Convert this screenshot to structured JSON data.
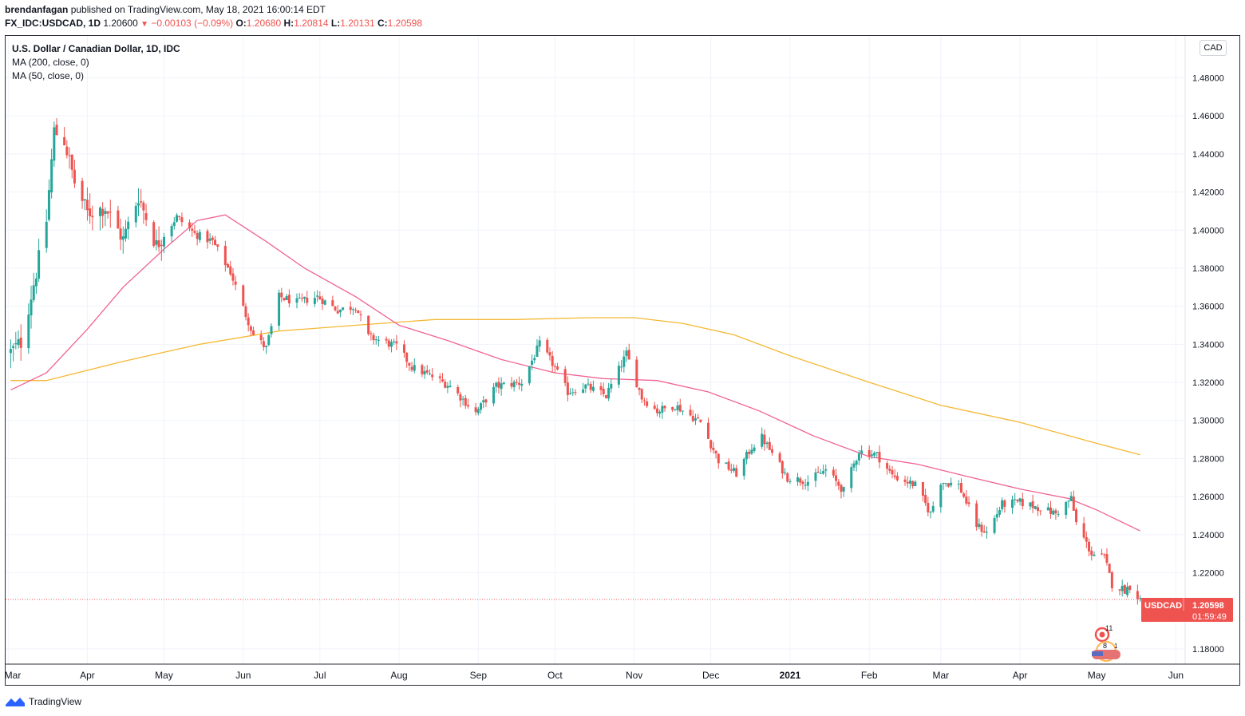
{
  "header": {
    "author": "brendanfagan",
    "published": "published on TradingView.com, May 18, 2021 16:00:14 EDT"
  },
  "ohlc": {
    "symbol": "FX_IDC:USDCAD, 1D",
    "last": "1.20600",
    "change": "−0.00103 (−0.09%)",
    "o_label": "O:",
    "o": "1.20680",
    "h_label": "H:",
    "h": "1.20814",
    "l_label": "L:",
    "l": "1.20131",
    "c_label": "C:",
    "c": "1.20598"
  },
  "legend": {
    "title": "U.S. Dollar / Canadian Dollar, 1D, IDC",
    "ma200": "MA (200, close, 0)",
    "ma50": "MA (50, close, 0)"
  },
  "currency": "CAD",
  "price_tag": {
    "symbol": "USDCAD",
    "price": "1.20598",
    "countdown": "01:59:49"
  },
  "event_markers": {
    "upper": "11",
    "lower": "8",
    "lower_extra": "1"
  },
  "footer": {
    "brand": "TradingView"
  },
  "colors": {
    "up": "#26a69a",
    "down": "#ef5350",
    "ma200": "#f5b833",
    "ma50": "#f06292",
    "grid": "#f0f3fa"
  },
  "chart_data": {
    "type": "candlestick",
    "x_ticks": [
      "Mar",
      "Apr",
      "May",
      "Jun",
      "Jul",
      "Aug",
      "Sep",
      "Oct",
      "Nov",
      "Dec",
      "2021",
      "Feb",
      "Mar",
      "Apr",
      "May",
      "Jun"
    ],
    "y_ticks": [
      "1.48000",
      "1.46000",
      "1.44000",
      "1.42000",
      "1.40000",
      "1.38000",
      "1.36000",
      "1.34000",
      "1.32000",
      "1.30000",
      "1.28000",
      "1.26000",
      "1.24000",
      "1.22000",
      "1.18000"
    ],
    "ylim": [
      1.172,
      1.502
    ],
    "close_keypoints": [
      [
        "2020-03-02",
        1.336
      ],
      [
        "2020-03-06",
        1.341
      ],
      [
        "2020-03-12",
        1.378
      ],
      [
        "2020-03-16",
        1.405
      ],
      [
        "2020-03-19",
        1.452
      ],
      [
        "2020-03-23",
        1.447
      ],
      [
        "2020-03-27",
        1.425
      ],
      [
        "2020-04-01",
        1.409
      ],
      [
        "2020-04-08",
        1.412
      ],
      [
        "2020-04-15",
        1.395
      ],
      [
        "2020-04-21",
        1.418
      ],
      [
        "2020-04-28",
        1.392
      ],
      [
        "2020-05-06",
        1.407
      ],
      [
        "2020-05-13",
        1.398
      ],
      [
        "2020-05-20",
        1.394
      ],
      [
        "2020-05-27",
        1.378
      ],
      [
        "2020-06-01",
        1.359
      ],
      [
        "2020-06-05",
        1.345
      ],
      [
        "2020-06-10",
        1.338
      ],
      [
        "2020-06-15",
        1.365
      ],
      [
        "2020-06-22",
        1.362
      ],
      [
        "2020-06-30",
        1.365
      ],
      [
        "2020-07-08",
        1.358
      ],
      [
        "2020-07-15",
        1.36
      ],
      [
        "2020-07-20",
        1.344
      ],
      [
        "2020-07-31",
        1.339
      ],
      [
        "2020-08-06",
        1.328
      ],
      [
        "2020-08-14",
        1.323
      ],
      [
        "2020-08-21",
        1.318
      ],
      [
        "2020-08-31",
        1.304
      ],
      [
        "2020-09-08",
        1.318
      ],
      [
        "2020-09-18",
        1.32
      ],
      [
        "2020-09-25",
        1.34
      ],
      [
        "2020-09-30",
        1.33
      ],
      [
        "2020-10-06",
        1.315
      ],
      [
        "2020-10-13",
        1.318
      ],
      [
        "2020-10-21",
        1.313
      ],
      [
        "2020-10-29",
        1.335
      ],
      [
        "2020-11-04",
        1.312
      ],
      [
        "2020-11-10",
        1.305
      ],
      [
        "2020-11-17",
        1.308
      ],
      [
        "2020-11-27",
        1.299
      ],
      [
        "2020-12-04",
        1.279
      ],
      [
        "2020-12-11",
        1.272
      ],
      [
        "2020-12-17",
        1.286
      ],
      [
        "2020-12-21",
        1.291
      ],
      [
        "2020-12-31",
        1.27
      ],
      [
        "2021-01-08",
        1.268
      ],
      [
        "2021-01-15",
        1.274
      ],
      [
        "2021-01-22",
        1.263
      ],
      [
        "2021-01-28",
        1.284
      ],
      [
        "2021-02-04",
        1.282
      ],
      [
        "2021-02-10",
        1.271
      ],
      [
        "2021-02-19",
        1.266
      ],
      [
        "2021-02-25",
        1.251
      ],
      [
        "2021-03-01",
        1.268
      ],
      [
        "2021-03-08",
        1.266
      ],
      [
        "2021-03-15",
        1.245
      ],
      [
        "2021-03-19",
        1.241
      ],
      [
        "2021-03-25",
        1.256
      ],
      [
        "2021-04-01",
        1.257
      ],
      [
        "2021-04-09",
        1.254
      ],
      [
        "2021-04-15",
        1.251
      ],
      [
        "2021-04-21",
        1.259
      ],
      [
        "2021-04-23",
        1.246
      ],
      [
        "2021-04-29",
        1.23
      ],
      [
        "2021-05-04",
        1.228
      ],
      [
        "2021-05-07",
        1.214
      ],
      [
        "2021-05-12",
        1.211
      ],
      [
        "2021-05-14",
        1.213
      ],
      [
        "2021-05-18",
        1.206
      ]
    ],
    "series": [
      {
        "name": "MA (200, close, 0)",
        "points": [
          [
            "2020-03-02",
            1.321
          ],
          [
            "2020-03-16",
            1.321
          ],
          [
            "2020-04-15",
            1.331
          ],
          [
            "2020-05-15",
            1.34
          ],
          [
            "2020-06-15",
            1.347
          ],
          [
            "2020-07-15",
            1.35
          ],
          [
            "2020-08-15",
            1.353
          ],
          [
            "2020-09-15",
            1.353
          ],
          [
            "2020-10-15",
            1.354
          ],
          [
            "2020-11-01",
            1.354
          ],
          [
            "2020-11-20",
            1.351
          ],
          [
            "2020-12-10",
            1.345
          ],
          [
            "2021-01-01",
            1.334
          ],
          [
            "2021-02-01",
            1.32
          ],
          [
            "2021-03-01",
            1.308
          ],
          [
            "2021-04-01",
            1.299
          ],
          [
            "2021-05-01",
            1.288
          ],
          [
            "2021-05-18",
            1.282
          ]
        ]
      },
      {
        "name": "MA (50, close, 0)",
        "points": [
          [
            "2020-03-02",
            1.316
          ],
          [
            "2020-03-16",
            1.325
          ],
          [
            "2020-04-01",
            1.348
          ],
          [
            "2020-04-15",
            1.37
          ],
          [
            "2020-05-01",
            1.39
          ],
          [
            "2020-05-14",
            1.405
          ],
          [
            "2020-05-25",
            1.408
          ],
          [
            "2020-06-10",
            1.394
          ],
          [
            "2020-06-25",
            1.38
          ],
          [
            "2020-07-15",
            1.365
          ],
          [
            "2020-08-01",
            1.35
          ],
          [
            "2020-08-20",
            1.342
          ],
          [
            "2020-09-10",
            1.332
          ],
          [
            "2020-10-01",
            1.325
          ],
          [
            "2020-10-20",
            1.322
          ],
          [
            "2020-11-10",
            1.321
          ],
          [
            "2020-11-30",
            1.315
          ],
          [
            "2020-12-20",
            1.305
          ],
          [
            "2021-01-10",
            1.292
          ],
          [
            "2021-02-01",
            1.281
          ],
          [
            "2021-02-20",
            1.277
          ],
          [
            "2021-03-10",
            1.271
          ],
          [
            "2021-04-01",
            1.264
          ],
          [
            "2021-04-20",
            1.259
          ],
          [
            "2021-05-01",
            1.253
          ],
          [
            "2021-05-18",
            1.242
          ]
        ]
      }
    ],
    "last_price": 1.20598,
    "grid": true
  }
}
